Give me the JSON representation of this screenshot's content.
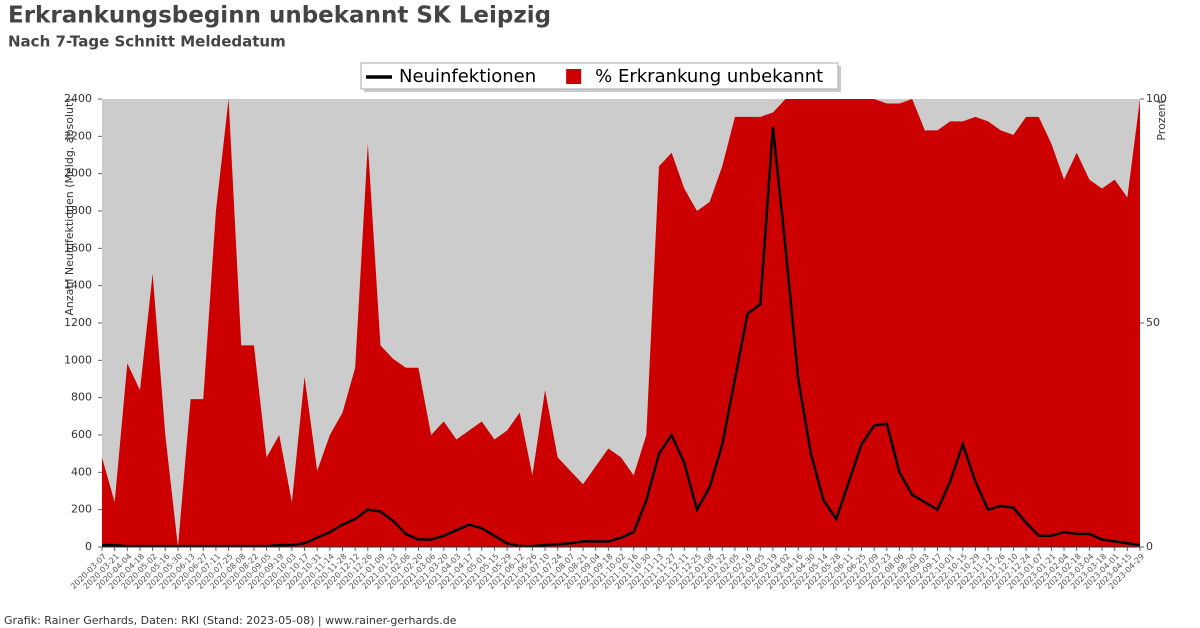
{
  "chart_data": {
    "type": "line",
    "title": "Erkrankungsbeginn unbekannt SK Leipzig",
    "subtitle": "Nach 7-Tage Schnitt Meldedatum",
    "footer": "Grafik: Rainer Gerhards, Daten: RKI (Stand: 2023-05-08) | www.rainer-gerhards.de",
    "ylabel": "Anzahl Neuinfektionen (Meldg. absolut)",
    "y2label": "Prozent",
    "x": [
      "2020-03-07",
      "2020-03-21",
      "2020-04-04",
      "2020-04-18",
      "2020-05-02",
      "2020-05-16",
      "2020-05-30",
      "2020-06-13",
      "2020-06-27",
      "2020-07-11",
      "2020-07-25",
      "2020-08-08",
      "2020-08-22",
      "2020-09-05",
      "2020-09-19",
      "2020-10-03",
      "2020-10-17",
      "2020-10-31",
      "2020-11-14",
      "2020-11-28",
      "2020-12-12",
      "2020-12-26",
      "2021-01-09",
      "2021-01-23",
      "2021-02-06",
      "2021-02-20",
      "2021-03-06",
      "2021-03-20",
      "2021-04-03",
      "2021-04-17",
      "2021-05-01",
      "2021-05-15",
      "2021-05-29",
      "2021-06-12",
      "2021-06-26",
      "2021-07-10",
      "2021-07-24",
      "2021-08-07",
      "2021-08-21",
      "2021-09-04",
      "2021-09-18",
      "2021-10-02",
      "2021-10-16",
      "2021-10-30",
      "2021-11-13",
      "2021-11-27",
      "2021-12-11",
      "2021-12-25",
      "2022-01-08",
      "2022-01-22",
      "2022-02-05",
      "2022-02-19",
      "2022-03-05",
      "2022-03-19",
      "2022-04-02",
      "2022-04-16",
      "2022-04-30",
      "2022-05-14",
      "2022-05-28",
      "2022-06-11",
      "2022-06-25",
      "2022-07-09",
      "2022-07-23",
      "2022-08-06",
      "2022-08-20",
      "2022-09-03",
      "2022-09-17",
      "2022-10-01",
      "2022-10-15",
      "2022-10-29",
      "2022-11-12",
      "2022-11-26",
      "2022-12-10",
      "2022-12-24",
      "2023-01-07",
      "2023-01-21",
      "2023-02-04",
      "2023-02-18",
      "2023-03-04",
      "2023-03-18",
      "2023-04-01",
      "2023-04-15",
      "2023-04-29"
    ],
    "series": [
      {
        "name": "% Erkrankung unbekannt",
        "type": "area",
        "axis": "y2",
        "color": "#cc0000",
        "values": [
          20,
          10,
          41,
          35,
          61,
          25,
          0,
          33,
          33,
          75,
          100,
          45,
          45,
          20,
          25,
          10,
          38,
          17,
          25,
          30,
          40,
          90,
          45,
          42,
          40,
          40,
          25,
          28,
          24,
          26,
          28,
          24,
          26,
          30,
          16,
          35,
          20,
          17,
          14,
          18,
          22,
          20,
          16,
          25,
          85,
          88,
          80,
          75,
          77,
          85,
          96,
          96,
          96,
          97,
          100,
          100,
          100,
          100,
          100,
          100,
          100,
          100,
          99,
          99,
          100,
          93,
          93,
          95,
          95,
          96,
          95,
          93,
          92,
          96,
          96,
          90,
          82,
          88,
          82,
          80,
          82,
          78,
          100
        ]
      },
      {
        "name": "Neuinfektionen",
        "type": "line",
        "color": "#000000",
        "values": [
          10,
          10,
          5,
          5,
          5,
          5,
          5,
          5,
          5,
          5,
          5,
          5,
          5,
          5,
          10,
          10,
          20,
          50,
          80,
          120,
          150,
          200,
          190,
          140,
          70,
          40,
          40,
          60,
          90,
          120,
          100,
          60,
          20,
          5,
          5,
          10,
          15,
          20,
          30,
          30,
          30,
          50,
          80,
          250,
          500,
          600,
          450,
          200,
          320,
          550,
          900,
          1250,
          1300,
          2250,
          1600,
          900,
          500,
          250,
          150,
          350,
          550,
          650,
          660,
          400,
          280,
          240,
          200,
          350,
          550,
          350,
          200,
          220,
          210,
          130,
          60,
          60,
          80,
          70,
          70,
          40,
          30,
          20,
          10
        ]
      }
    ],
    "ylim": [
      0,
      2400
    ],
    "yticks": [
      0,
      200,
      400,
      600,
      800,
      1000,
      1200,
      1400,
      1600,
      1800,
      2000,
      2200,
      2400
    ],
    "y2lim": [
      0,
      100
    ],
    "y2ticks": [
      0,
      50,
      100
    ],
    "legend": "top"
  }
}
